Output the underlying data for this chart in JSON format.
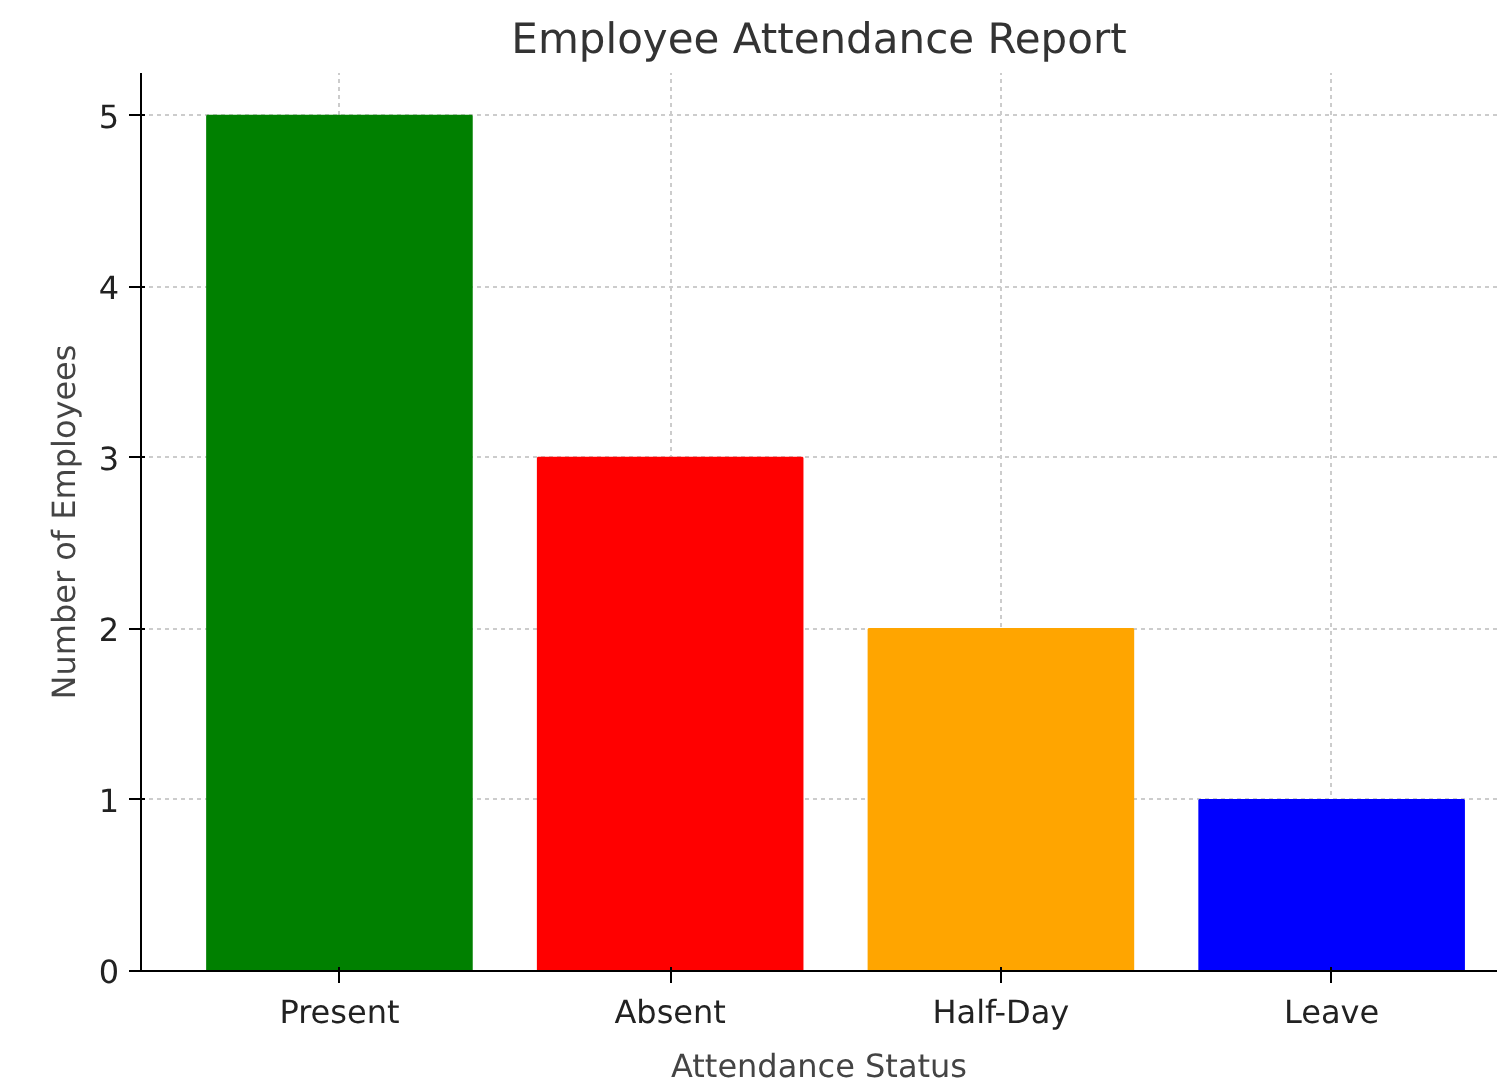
{
  "chart_data": {
    "type": "bar",
    "title": "Employee Attendance Report",
    "xlabel": "Attendance Status",
    "ylabel": "Number of Employees",
    "categories": [
      "Present",
      "Absent",
      "Half-Day",
      "Leave"
    ],
    "values": [
      5,
      3,
      2,
      1
    ],
    "colors": [
      "#008000",
      "#ff0000",
      "#ffa500",
      "#0000ff"
    ],
    "ylim": [
      0,
      5.25
    ],
    "yticks": [
      0,
      1,
      2,
      3,
      4,
      5
    ],
    "grid": true
  }
}
